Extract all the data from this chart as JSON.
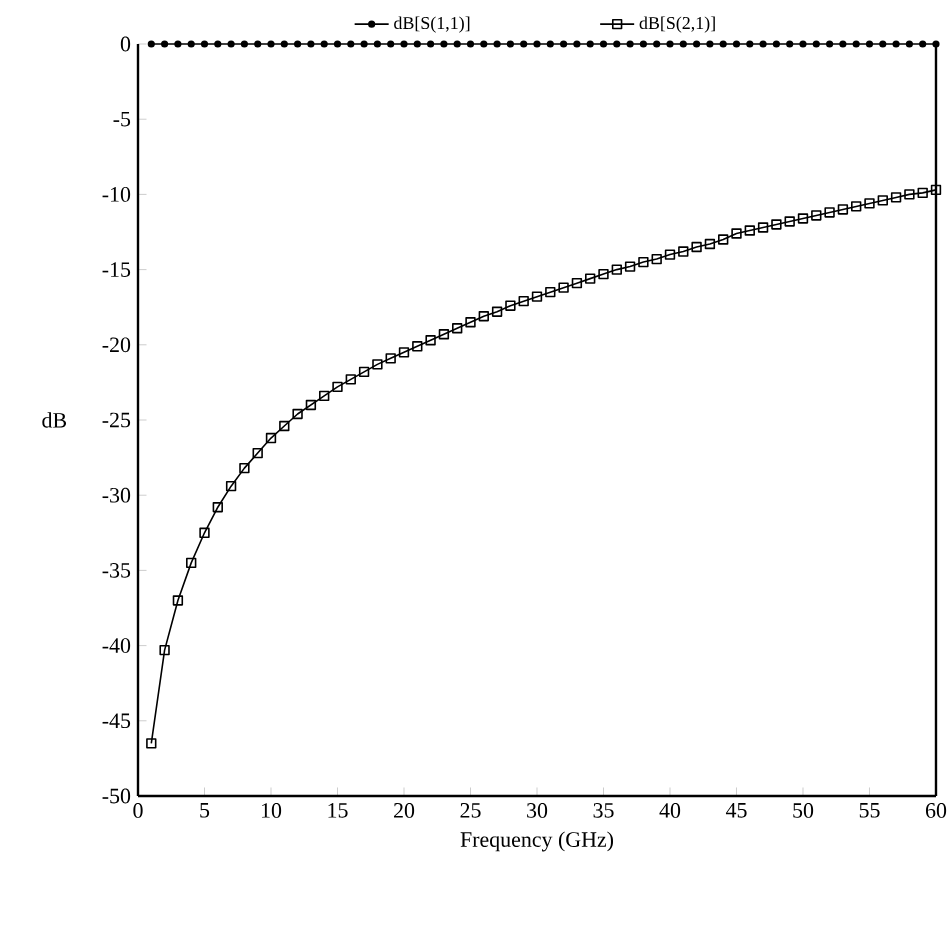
{
  "chart_data": {
    "type": "line",
    "xlabel": "Frequency (GHz)",
    "ylabel": "dB",
    "x": [
      1,
      2,
      3,
      4,
      5,
      6,
      7,
      8,
      9,
      10,
      11,
      12,
      13,
      14,
      15,
      16,
      17,
      18,
      19,
      20,
      21,
      22,
      23,
      24,
      25,
      26,
      27,
      28,
      29,
      30,
      31,
      32,
      33,
      34,
      35,
      36,
      37,
      38,
      39,
      40,
      41,
      42,
      43,
      44,
      45,
      46,
      47,
      48,
      49,
      50,
      51,
      52,
      53,
      54,
      55,
      56,
      57,
      58,
      59,
      60
    ],
    "series": [
      {
        "name": "dB[S(1,1)]",
        "color": "#000000",
        "marker": "circle",
        "values": [
          0,
          0,
          0,
          0,
          0,
          0,
          0,
          0,
          0,
          0,
          0,
          0,
          0,
          0,
          0,
          0,
          0,
          0,
          0,
          0,
          0,
          0,
          0,
          0,
          0,
          0,
          0,
          0,
          0,
          0,
          0,
          0,
          0,
          0,
          0,
          0,
          0,
          0,
          0,
          0,
          0,
          0,
          0,
          0,
          0,
          0,
          0,
          0,
          0,
          0,
          0,
          0,
          0,
          0,
          0,
          0,
          0,
          0,
          0,
          0
        ]
      },
      {
        "name": "dB[S(2,1)]",
        "color": "#000000",
        "marker": "square",
        "values": [
          -46.5,
          -40.3,
          -37.0,
          -34.5,
          -32.5,
          -30.8,
          -29.4,
          -28.2,
          -27.2,
          -26.2,
          -25.4,
          -24.6,
          -24.0,
          -23.4,
          -22.8,
          -22.3,
          -21.8,
          -21.3,
          -20.9,
          -20.5,
          -20.1,
          -19.7,
          -19.3,
          -18.9,
          -18.5,
          -18.1,
          -17.8,
          -17.4,
          -17.1,
          -16.8,
          -16.5,
          -16.2,
          -15.9,
          -15.6,
          -15.3,
          -15.0,
          -14.8,
          -14.5,
          -14.3,
          -14.0,
          -13.8,
          -13.5,
          -13.3,
          -13.0,
          -12.6,
          -12.4,
          -12.2,
          -12.0,
          -11.8,
          -11.6,
          -11.4,
          -11.2,
          -11.0,
          -10.8,
          -10.6,
          -10.4,
          -10.2,
          -10.0,
          -9.9,
          -9.7
        ]
      }
    ],
    "xlim": [
      0,
      60
    ],
    "ylim": [
      -50,
      0
    ],
    "xticks": [
      0,
      5,
      10,
      15,
      20,
      25,
      30,
      35,
      40,
      45,
      50,
      55,
      60
    ],
    "yticks": [
      -50,
      -45,
      -40,
      -35,
      -30,
      -25,
      -20,
      -15,
      -10,
      -5,
      0
    ],
    "grid": false,
    "legend": "top",
    "line_style": "solid"
  }
}
